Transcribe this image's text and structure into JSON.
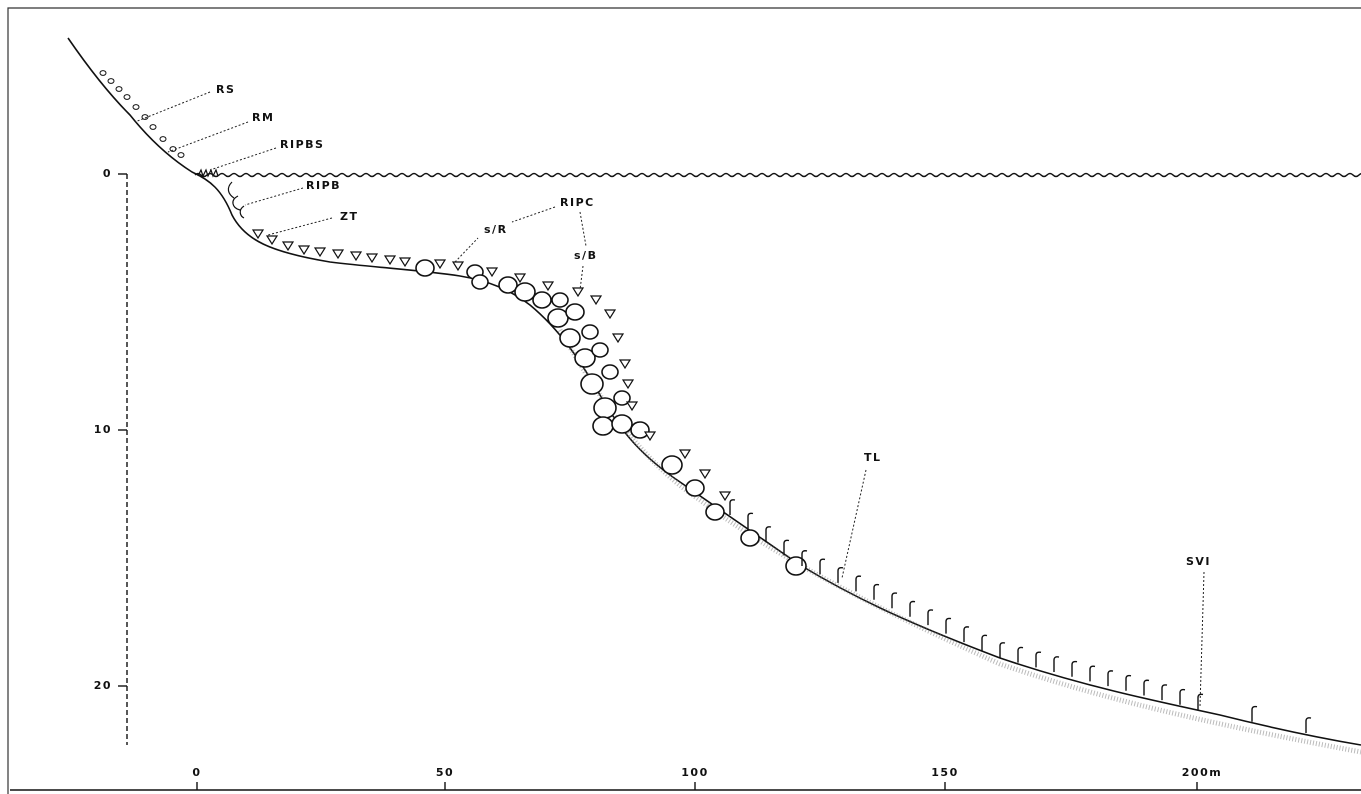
{
  "depth_axis": {
    "ticks": [
      "0",
      "10",
      "20"
    ]
  },
  "distance_axis": {
    "ticks": [
      "0",
      "50",
      "100",
      "150",
      "200m"
    ]
  },
  "labels": [
    "RS",
    "RM",
    "RIPBS",
    "RIPB",
    "ZT",
    "RIPC",
    "s/R",
    "s/B",
    "TL",
    "SVI"
  ]
}
